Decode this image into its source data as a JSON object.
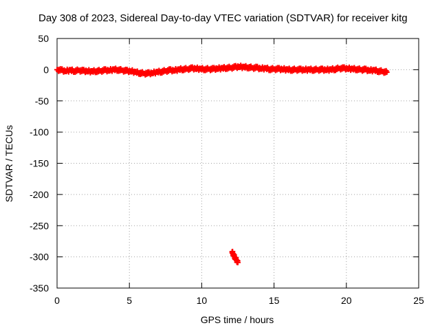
{
  "chart_data": {
    "type": "scatter",
    "title": "Day 308 of 2023, Sidereal Day-to-day VTEC variation (SDTVAR) for receiver kitg",
    "xlabel": "GPS time / hours",
    "ylabel": "SDTVAR / TECUs",
    "xlim": [
      0,
      25
    ],
    "ylim": [
      -350,
      50
    ],
    "xticks": [
      "0",
      "5",
      "10",
      "15",
      "20",
      "25"
    ],
    "yticks": [
      "50",
      "0",
      "-50",
      "-100",
      "-150",
      "-200",
      "-250",
      "-300",
      "-350"
    ],
    "grid": true,
    "legend": "none",
    "series_color": "#ff0000",
    "series": [
      {
        "x": [
          0.0,
          0.3,
          0.6,
          0.9,
          1.2,
          1.5,
          1.8,
          2.1,
          2.4,
          2.7,
          3.0,
          3.3,
          3.6,
          3.9,
          4.2,
          4.5,
          4.8,
          5.1,
          5.4,
          5.7,
          6.0,
          6.3,
          6.6,
          6.9,
          7.2,
          7.5,
          7.8,
          8.1,
          8.4,
          8.7,
          9.0,
          9.3,
          9.6,
          9.9,
          10.2,
          10.5,
          10.8,
          11.1,
          11.4,
          11.7,
          12.0,
          12.3,
          12.6,
          12.9,
          13.2,
          13.5,
          13.8,
          14.1,
          14.4,
          14.7,
          15.0,
          15.3,
          15.6,
          15.9,
          16.2,
          16.5,
          16.8,
          17.1,
          17.4,
          17.7,
          18.0,
          18.3,
          18.6,
          18.9,
          19.2,
          19.5,
          19.8,
          20.1,
          20.4,
          20.7,
          21.0,
          21.3,
          21.6,
          21.9,
          22.2,
          22.5,
          22.8,
          12.1,
          12.2,
          12.3,
          12.4,
          12.5
        ],
        "y": [
          0,
          -1,
          -2,
          -1,
          -2,
          -1,
          -2,
          -2,
          -3,
          -2,
          -2,
          -1,
          -1,
          0,
          0,
          -1,
          -2,
          -2,
          -4,
          -5,
          -6,
          -6,
          -5,
          -4,
          -3,
          -2,
          -1,
          -1,
          0,
          1,
          1,
          2,
          2,
          1,
          1,
          1,
          1,
          2,
          2,
          3,
          3,
          4,
          5,
          4,
          4,
          3,
          3,
          2,
          2,
          1,
          1,
          1,
          1,
          0,
          0,
          0,
          0,
          0,
          0,
          0,
          0,
          0,
          0,
          0,
          1,
          2,
          2,
          2,
          1,
          1,
          0,
          0,
          -1,
          -1,
          -2,
          -3,
          -4,
          -292,
          -297,
          -301,
          -305,
          -309
        ]
      }
    ]
  }
}
